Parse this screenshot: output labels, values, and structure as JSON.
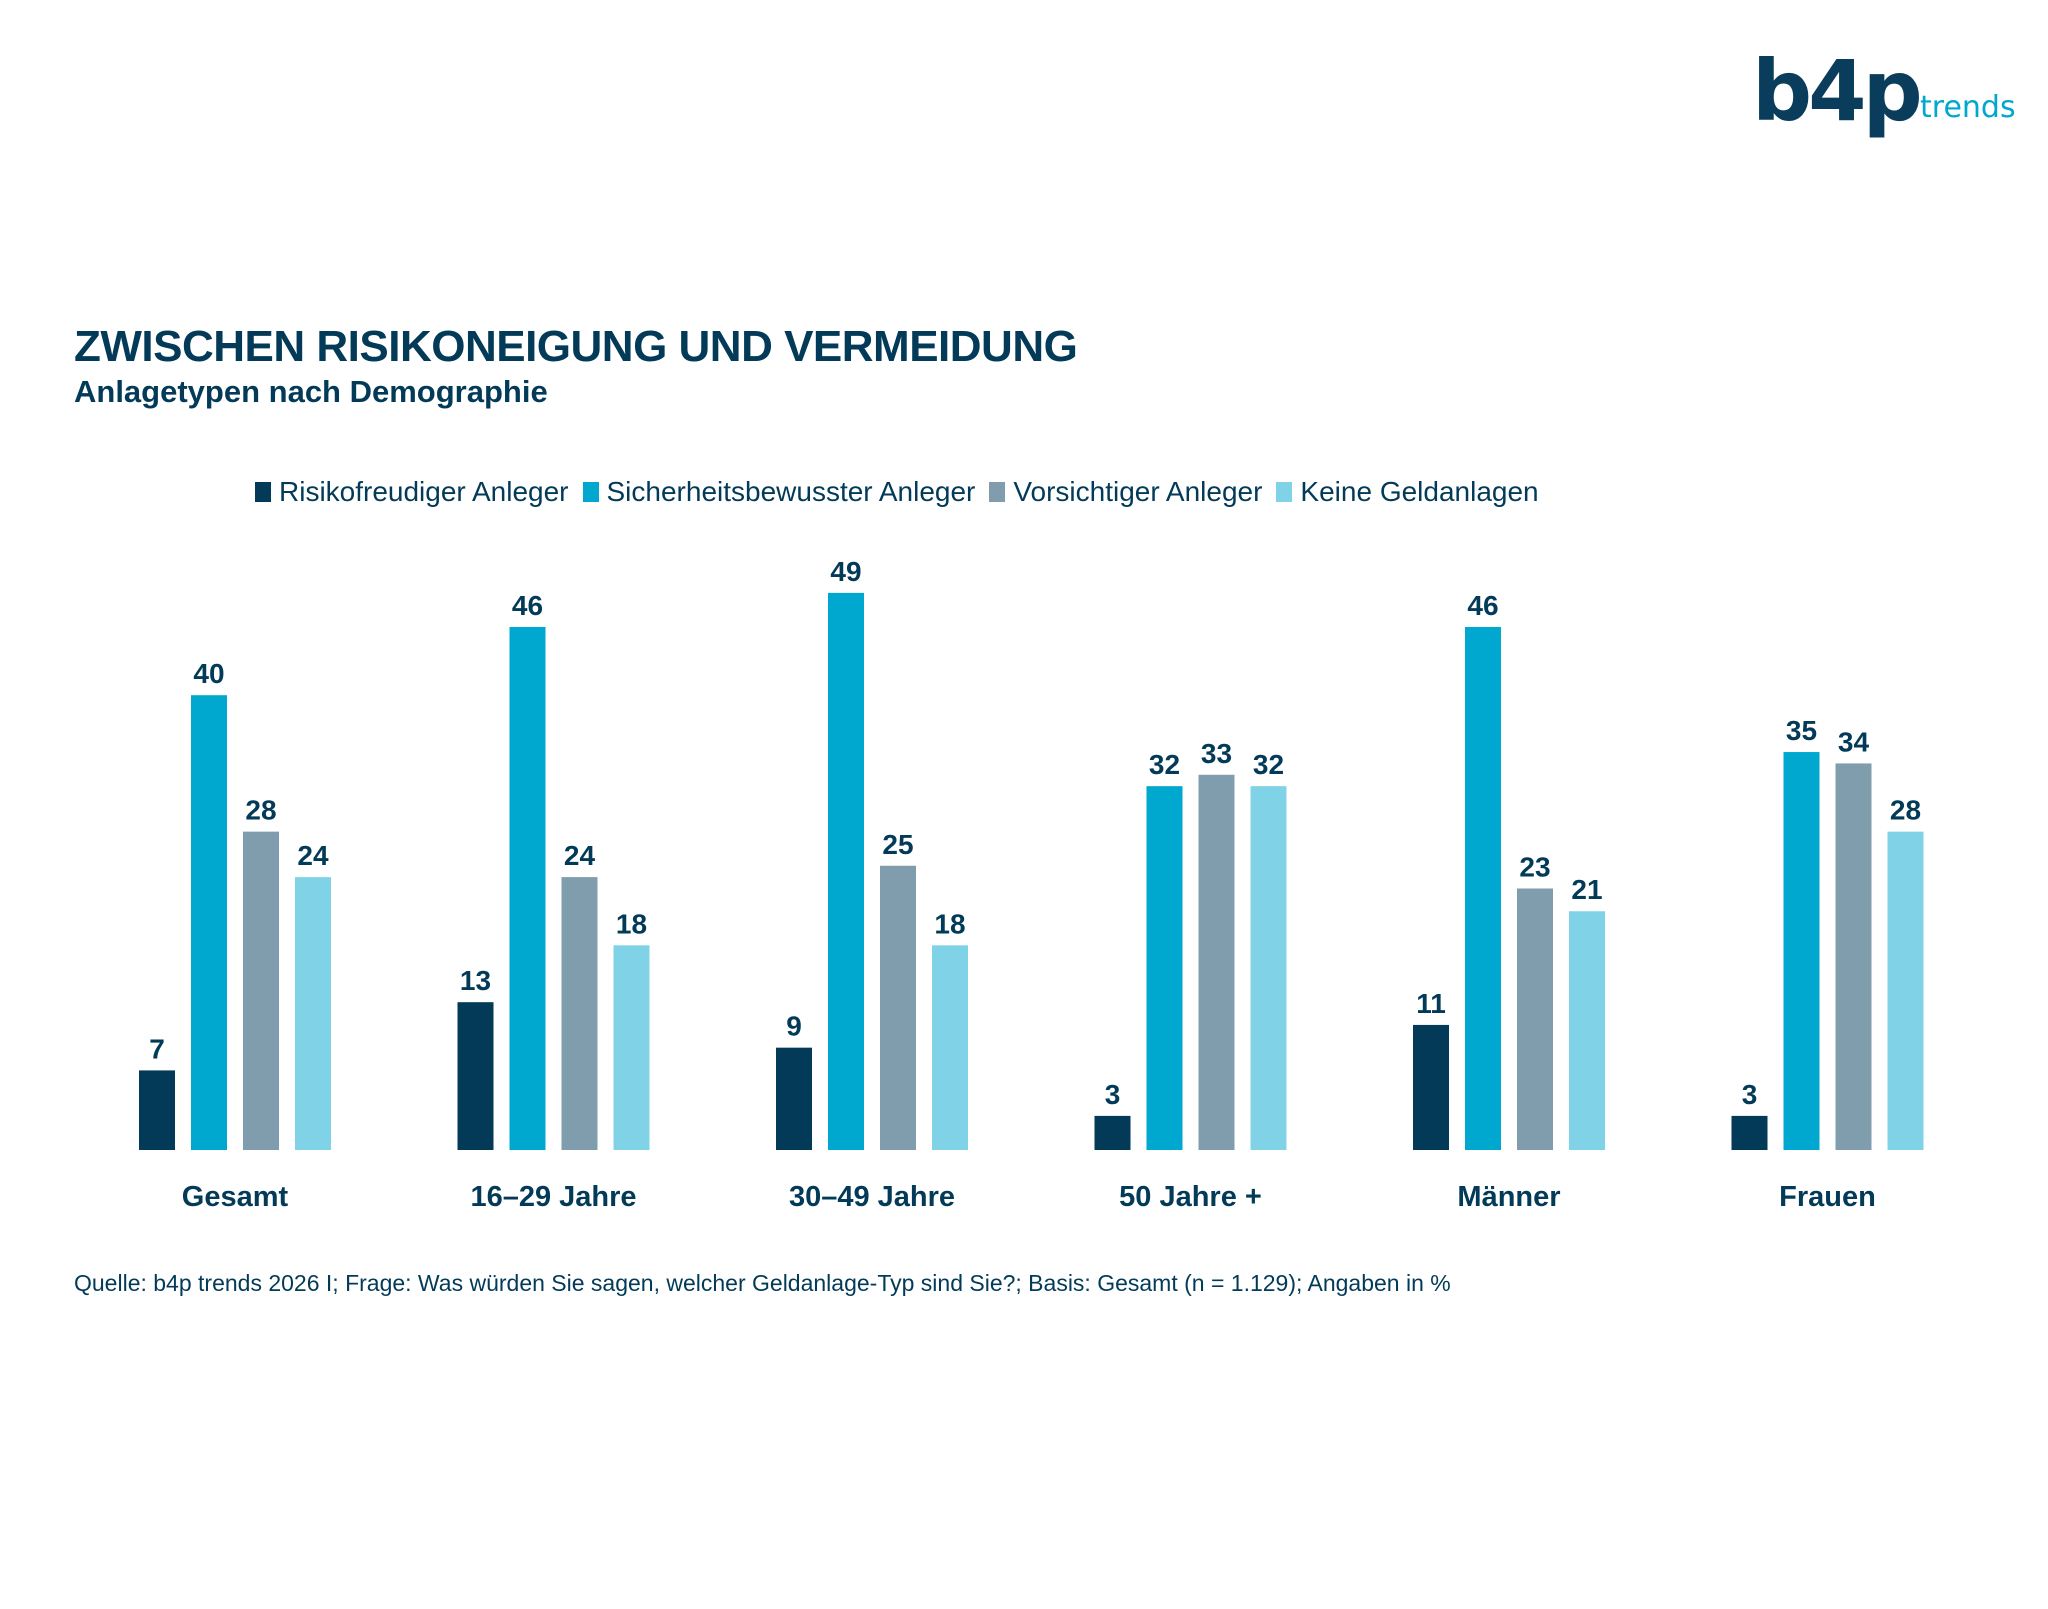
{
  "brand": {
    "logo_text": "b4p",
    "logo_suffix": "trends"
  },
  "header": {
    "title": "ZWISCHEN RISIKONEIGUNG UND VERMEIDUNG",
    "subtitle": "Anlagetypen nach Demographie"
  },
  "footer": {
    "source": "Quelle: b4p trends 2026 I; Frage: Was würden Sie sagen, welcher Geldanlage-Typ sind Sie?; Basis: Gesamt (n = 1.129); Angaben in %"
  },
  "chart_data": {
    "type": "bar",
    "title": "ZWISCHEN RISIKONEIGUNG UND VERMEIDUNG",
    "subtitle": "Anlagetypen nach Demographie",
    "xlabel": "",
    "ylabel": "",
    "unit": "%",
    "ylim": [
      0,
      50
    ],
    "grid": false,
    "legend_position": "top-center",
    "categories": [
      "Gesamt",
      "16–29 Jahre",
      "30–49 Jahre",
      "50 Jahre +",
      "Männer",
      "Frauen"
    ],
    "series": [
      {
        "name": "Risikofreudiger Anleger",
        "color": "#023a58",
        "values": [
          7,
          13,
          9,
          3,
          11,
          3
        ]
      },
      {
        "name": "Sicherheitsbewusster Anleger",
        "color": "#00a8cf",
        "values": [
          40,
          46,
          49,
          32,
          46,
          35
        ]
      },
      {
        "name": "Vorsichtiger Anleger",
        "color": "#809dad",
        "values": [
          28,
          24,
          25,
          33,
          23,
          34
        ]
      },
      {
        "name": "Keine Geldanlagen",
        "color": "#80d3e7",
        "values": [
          24,
          18,
          18,
          32,
          21,
          28
        ]
      }
    ]
  }
}
